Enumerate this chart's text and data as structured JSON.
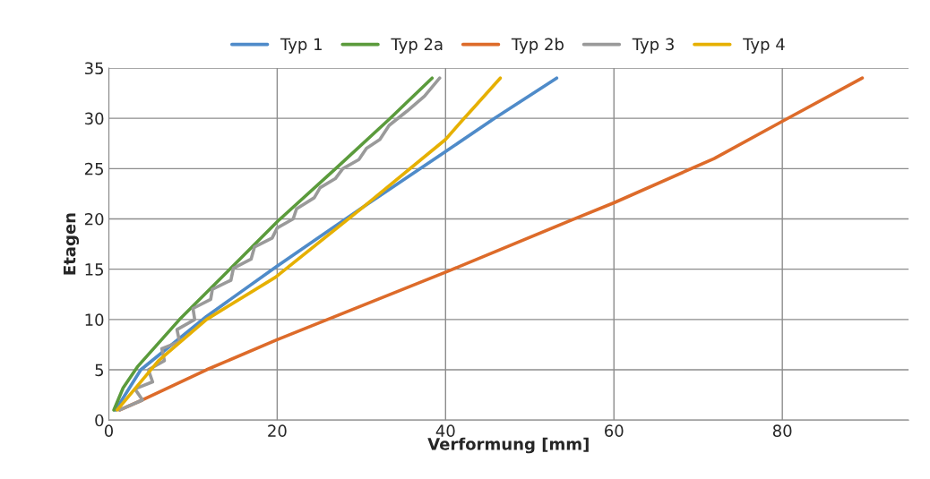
{
  "chart_data": {
    "type": "line",
    "xlabel": "Verformung [mm]",
    "ylabel": "Etagen",
    "xlim": [
      0,
      95
    ],
    "xticks": [
      0,
      20,
      40,
      60,
      80
    ],
    "ylim": [
      0,
      35
    ],
    "yticks": [
      0,
      5,
      10,
      15,
      20,
      25,
      30,
      35
    ],
    "grid": true,
    "legend": "top",
    "marker": "none",
    "line_style": "solid",
    "series": [
      {
        "name": "Typ 1",
        "color": "#4f8bc9",
        "x": [
          0.8,
          3.8,
          11.6,
          19.8,
          30.4,
          40,
          45.8,
          53.2
        ],
        "values": [
          1,
          5,
          10.3,
          15.2,
          21.3,
          26.7,
          30,
          34
        ]
      },
      {
        "name": "Typ 2a",
        "color": "#5b9b3c",
        "x": [
          0.6,
          1.7,
          3.4,
          8.4,
          14.5,
          20.1,
          27.2,
          33.3,
          38.4
        ],
        "values": [
          1,
          3.2,
          5.3,
          10,
          15.1,
          19.8,
          25.2,
          29.9,
          34
        ]
      },
      {
        "name": "Typ 2b",
        "color": "#dd6b2a",
        "x": [
          1.3,
          4,
          11.6,
          20,
          40.3,
          55,
          60,
          71.9,
          80,
          89.5
        ],
        "values": [
          1,
          2,
          5,
          8,
          14.8,
          19.9,
          21.6,
          26,
          29.7,
          34
        ]
      },
      {
        "name": "Typ 3",
        "color": "#9a9a9a",
        "x": [
          1.3,
          4,
          3.1,
          5.2,
          4.7,
          6.6,
          6.3,
          8.4,
          8.1,
          10.2,
          10,
          12.1,
          12.3,
          14.5,
          14.8,
          16.9,
          17.3,
          19.4,
          20,
          21.9,
          22.3,
          24.4,
          25.1,
          26.9,
          27.8,
          29.7,
          30.6,
          32.2,
          33.3,
          35.4,
          37.5,
          39.3
        ],
        "values": [
          1,
          2,
          3.1,
          3.8,
          5,
          5.9,
          7.1,
          7.8,
          9,
          10,
          11.1,
          12,
          13,
          13.9,
          15.1,
          16,
          17.2,
          18.1,
          19.1,
          20,
          21,
          22.1,
          23.1,
          24,
          25,
          25.9,
          27,
          27.9,
          29.3,
          30.7,
          32.2,
          34
        ]
      },
      {
        "name": "Typ 4",
        "color": "#e6b000",
        "x": [
          1,
          5.9,
          11.6,
          19.8,
          30.4,
          40,
          42.1,
          43.4,
          46.5
        ],
        "values": [
          1,
          5.9,
          10,
          14.2,
          21.3,
          27.9,
          29.9,
          31.1,
          34
        ]
      }
    ]
  }
}
